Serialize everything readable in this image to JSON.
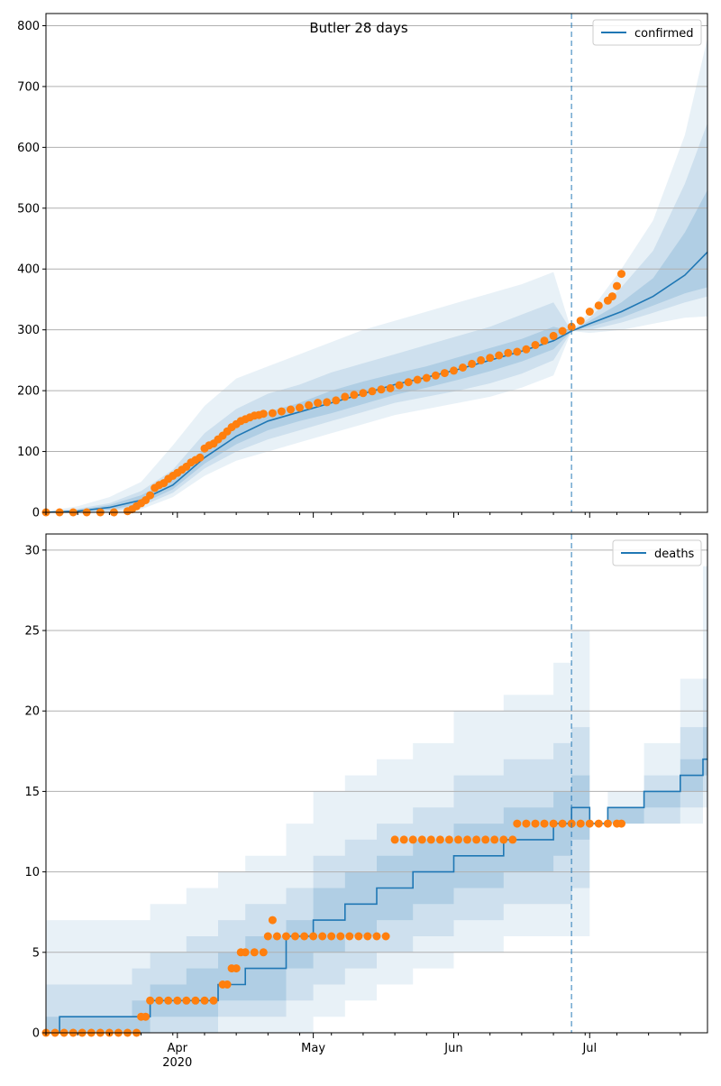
{
  "chart_data": [
    {
      "type": "line",
      "title": "Butler 28 days",
      "xlabel": "",
      "ylabel": "",
      "ylim": [
        0,
        820
      ],
      "xlim": [
        "2020-03-03",
        "2020-07-27"
      ],
      "yticks": [
        0,
        100,
        200,
        300,
        400,
        500,
        600,
        700,
        800
      ],
      "xticks": [
        {
          "date": "2020-04-01",
          "label": "Apr",
          "sublabel": "2020"
        },
        {
          "date": "2020-05-01",
          "label": "May",
          "sublabel": ""
        },
        {
          "date": "2020-06-01",
          "label": "Jun",
          "sublabel": ""
        },
        {
          "date": "2020-07-01",
          "label": "Jul",
          "sublabel": ""
        }
      ],
      "grid": "y",
      "legend": {
        "position": "top-right",
        "entries": [
          "confirmed"
        ]
      },
      "vline_date": "2020-06-27",
      "colors": {
        "line": "#1f77b4",
        "observed": "#ff7f0e",
        "band": "#1f77b4"
      },
      "series": [
        {
          "name": "confirmed",
          "kind": "line",
          "x": [
            "2020-03-03",
            "2020-03-10",
            "2020-03-17",
            "2020-03-24",
            "2020-03-31",
            "2020-04-07",
            "2020-04-14",
            "2020-04-21",
            "2020-04-28",
            "2020-05-05",
            "2020-05-12",
            "2020-05-19",
            "2020-05-26",
            "2020-06-02",
            "2020-06-09",
            "2020-06-16",
            "2020-06-23",
            "2020-06-27",
            "2020-07-01",
            "2020-07-08",
            "2020-07-15",
            "2020-07-22",
            "2020-07-27"
          ],
          "y": [
            0,
            2,
            8,
            20,
            45,
            90,
            125,
            150,
            165,
            180,
            195,
            210,
            222,
            235,
            250,
            265,
            282,
            298,
            310,
            330,
            355,
            390,
            428
          ]
        }
      ],
      "bands": [
        {
          "level": "outer",
          "lower": [
            0,
            0,
            0,
            5,
            25,
            60,
            85,
            100,
            115,
            130,
            145,
            160,
            170,
            180,
            190,
            205,
            225,
            298,
            295,
            300,
            310,
            320,
            322
          ],
          "upper": [
            2,
            10,
            25,
            50,
            110,
            175,
            220,
            240,
            260,
            280,
            300,
            315,
            330,
            345,
            360,
            375,
            395,
            298,
            330,
            400,
            480,
            620,
            780
          ]
        },
        {
          "level": "middle",
          "lower": [
            0,
            0,
            2,
            10,
            32,
            72,
            100,
            120,
            135,
            150,
            165,
            180,
            190,
            200,
            212,
            228,
            250,
            298,
            300,
            312,
            328,
            345,
            355
          ],
          "upper": [
            1,
            6,
            15,
            35,
            70,
            130,
            170,
            195,
            210,
            230,
            245,
            260,
            275,
            290,
            305,
            325,
            345,
            298,
            320,
            370,
            430,
            540,
            640
          ]
        },
        {
          "level": "inner",
          "lower": [
            0,
            1,
            4,
            14,
            38,
            80,
            112,
            135,
            150,
            163,
            178,
            193,
            205,
            218,
            232,
            248,
            268,
            298,
            305,
            320,
            340,
            360,
            370
          ],
          "upper": [
            0,
            4,
            12,
            28,
            55,
            105,
            145,
            165,
            180,
            200,
            215,
            228,
            240,
            255,
            270,
            285,
            305,
            298,
            315,
            345,
            385,
            460,
            530
          ]
        }
      ],
      "observed": {
        "name": "",
        "kind": "scatter",
        "x": [
          "2020-03-03",
          "2020-03-06",
          "2020-03-09",
          "2020-03-12",
          "2020-03-15",
          "2020-03-18",
          "2020-03-21",
          "2020-03-22",
          "2020-03-23",
          "2020-03-24",
          "2020-03-25",
          "2020-03-26",
          "2020-03-27",
          "2020-03-28",
          "2020-03-29",
          "2020-03-30",
          "2020-03-31",
          "2020-04-01",
          "2020-04-02",
          "2020-04-03",
          "2020-04-04",
          "2020-04-05",
          "2020-04-06",
          "2020-04-07",
          "2020-04-08",
          "2020-04-09",
          "2020-04-10",
          "2020-04-11",
          "2020-04-12",
          "2020-04-13",
          "2020-04-14",
          "2020-04-15",
          "2020-04-16",
          "2020-04-17",
          "2020-04-18",
          "2020-04-19",
          "2020-04-20",
          "2020-04-22",
          "2020-04-24",
          "2020-04-26",
          "2020-04-28",
          "2020-04-30",
          "2020-05-02",
          "2020-05-04",
          "2020-05-06",
          "2020-05-08",
          "2020-05-10",
          "2020-05-12",
          "2020-05-14",
          "2020-05-16",
          "2020-05-18",
          "2020-05-20",
          "2020-05-22",
          "2020-05-24",
          "2020-05-26",
          "2020-05-28",
          "2020-05-30",
          "2020-06-01",
          "2020-06-03",
          "2020-06-05",
          "2020-06-07",
          "2020-06-09",
          "2020-06-11",
          "2020-06-13",
          "2020-06-15",
          "2020-06-17",
          "2020-06-19",
          "2020-06-21",
          "2020-06-23",
          "2020-06-25",
          "2020-06-27",
          "2020-06-29",
          "2020-07-01",
          "2020-07-03",
          "2020-07-05",
          "2020-07-06",
          "2020-07-07",
          "2020-07-08"
        ],
        "y": [
          0,
          0,
          0,
          0,
          0,
          0,
          2,
          5,
          10,
          15,
          20,
          28,
          40,
          45,
          48,
          55,
          60,
          65,
          70,
          75,
          82,
          86,
          90,
          105,
          110,
          113,
          120,
          126,
          133,
          140,
          145,
          150,
          153,
          156,
          159,
          160,
          162,
          163,
          166,
          169,
          172,
          176,
          180,
          181,
          184,
          190,
          193,
          196,
          199,
          202,
          204,
          209,
          214,
          218,
          221,
          225,
          229,
          233,
          238,
          244,
          250,
          254,
          258,
          262,
          264,
          268,
          275,
          282,
          290,
          298,
          305,
          315,
          330,
          340,
          348,
          355,
          372,
          392
        ]
      }
    },
    {
      "type": "line",
      "title": "",
      "xlabel": "",
      "ylabel": "",
      "ylim": [
        0,
        31
      ],
      "xlim": [
        "2020-03-03",
        "2020-07-27"
      ],
      "yticks": [
        0,
        5,
        10,
        15,
        20,
        25,
        30
      ],
      "xticks": [
        {
          "date": "2020-04-01",
          "label": "Apr",
          "sublabel": "2020"
        },
        {
          "date": "2020-05-01",
          "label": "May",
          "sublabel": ""
        },
        {
          "date": "2020-06-01",
          "label": "Jun",
          "sublabel": ""
        },
        {
          "date": "2020-07-01",
          "label": "Jul",
          "sublabel": ""
        }
      ],
      "grid": "y",
      "legend": {
        "position": "top-right",
        "entries": [
          "deaths"
        ]
      },
      "vline_date": "2020-06-27",
      "colors": {
        "line": "#1f77b4",
        "observed": "#ff7f0e",
        "band": "#1f77b4"
      },
      "series": [
        {
          "name": "deaths",
          "kind": "step",
          "x": [
            "2020-03-03",
            "2020-03-06",
            "2020-03-22",
            "2020-03-26",
            "2020-04-03",
            "2020-04-10",
            "2020-04-16",
            "2020-04-25",
            "2020-05-01",
            "2020-05-08",
            "2020-05-15",
            "2020-05-23",
            "2020-06-01",
            "2020-06-12",
            "2020-06-23",
            "2020-06-27",
            "2020-07-01",
            "2020-07-05",
            "2020-07-13",
            "2020-07-21",
            "2020-07-26",
            "2020-07-27"
          ],
          "y": [
            0,
            1,
            1,
            2,
            2,
            3,
            4,
            6,
            7,
            8,
            9,
            10,
            11,
            12,
            13,
            14,
            13,
            14,
            15,
            16,
            17,
            17
          ]
        }
      ],
      "bands": [
        {
          "level": "outer",
          "lower": [
            0,
            0,
            0,
            0,
            0,
            0,
            0,
            0,
            1,
            2,
            3,
            4,
            5,
            6,
            6,
            6,
            13,
            13,
            13,
            13,
            14,
            14
          ],
          "upper": [
            7,
            7,
            7,
            8,
            9,
            10,
            11,
            13,
            15,
            16,
            17,
            18,
            20,
            21,
            23,
            25,
            13,
            15,
            18,
            22,
            29,
            30
          ]
        },
        {
          "level": "middle",
          "lower": [
            0,
            0,
            0,
            0,
            0,
            1,
            1,
            2,
            3,
            4,
            5,
            6,
            7,
            8,
            8,
            9,
            13,
            13,
            13,
            14,
            15,
            15
          ],
          "upper": [
            3,
            3,
            4,
            5,
            6,
            7,
            8,
            9,
            11,
            12,
            13,
            14,
            16,
            17,
            18,
            19,
            13,
            14,
            16,
            19,
            22,
            22
          ]
        },
        {
          "level": "inner",
          "lower": [
            0,
            0,
            0,
            1,
            1,
            2,
            2,
            4,
            5,
            6,
            7,
            8,
            9,
            10,
            11,
            12,
            13,
            13,
            14,
            15,
            16,
            16
          ],
          "upper": [
            1,
            1,
            2,
            3,
            4,
            5,
            6,
            7,
            9,
            10,
            11,
            12,
            13,
            14,
            15,
            16,
            13,
            14,
            15,
            17,
            19,
            19
          ]
        }
      ],
      "observed": {
        "name": "",
        "kind": "scatter",
        "x": [
          "2020-03-03",
          "2020-03-05",
          "2020-03-07",
          "2020-03-09",
          "2020-03-11",
          "2020-03-13",
          "2020-03-15",
          "2020-03-17",
          "2020-03-19",
          "2020-03-21",
          "2020-03-23",
          "2020-03-24",
          "2020-03-25",
          "2020-03-26",
          "2020-03-28",
          "2020-03-30",
          "2020-04-01",
          "2020-04-03",
          "2020-04-05",
          "2020-04-07",
          "2020-04-09",
          "2020-04-11",
          "2020-04-12",
          "2020-04-13",
          "2020-04-14",
          "2020-04-15",
          "2020-04-16",
          "2020-04-18",
          "2020-04-20",
          "2020-04-21",
          "2020-04-22",
          "2020-04-23",
          "2020-04-25",
          "2020-04-27",
          "2020-04-29",
          "2020-05-01",
          "2020-05-03",
          "2020-05-05",
          "2020-05-07",
          "2020-05-09",
          "2020-05-11",
          "2020-05-13",
          "2020-05-15",
          "2020-05-17",
          "2020-05-19",
          "2020-05-21",
          "2020-05-23",
          "2020-05-25",
          "2020-05-27",
          "2020-05-29",
          "2020-05-31",
          "2020-06-02",
          "2020-06-04",
          "2020-06-06",
          "2020-06-08",
          "2020-06-10",
          "2020-06-12",
          "2020-06-14",
          "2020-06-15",
          "2020-06-17",
          "2020-06-19",
          "2020-06-21",
          "2020-06-23",
          "2020-06-25",
          "2020-06-27",
          "2020-06-29",
          "2020-07-01",
          "2020-07-03",
          "2020-07-05",
          "2020-07-07",
          "2020-07-08"
        ],
        "y": [
          0,
          0,
          0,
          0,
          0,
          0,
          0,
          0,
          0,
          0,
          0,
          1,
          1,
          2,
          2,
          2,
          2,
          2,
          2,
          2,
          2,
          3,
          3,
          4,
          4,
          5,
          5,
          5,
          5,
          6,
          7,
          6,
          6,
          6,
          6,
          6,
          6,
          6,
          6,
          6,
          6,
          6,
          6,
          6,
          12,
          12,
          12,
          12,
          12,
          12,
          12,
          12,
          12,
          12,
          12,
          12,
          12,
          12,
          13,
          13,
          13,
          13,
          13,
          13,
          13,
          13,
          13,
          13,
          13,
          13,
          13
        ]
      }
    }
  ]
}
